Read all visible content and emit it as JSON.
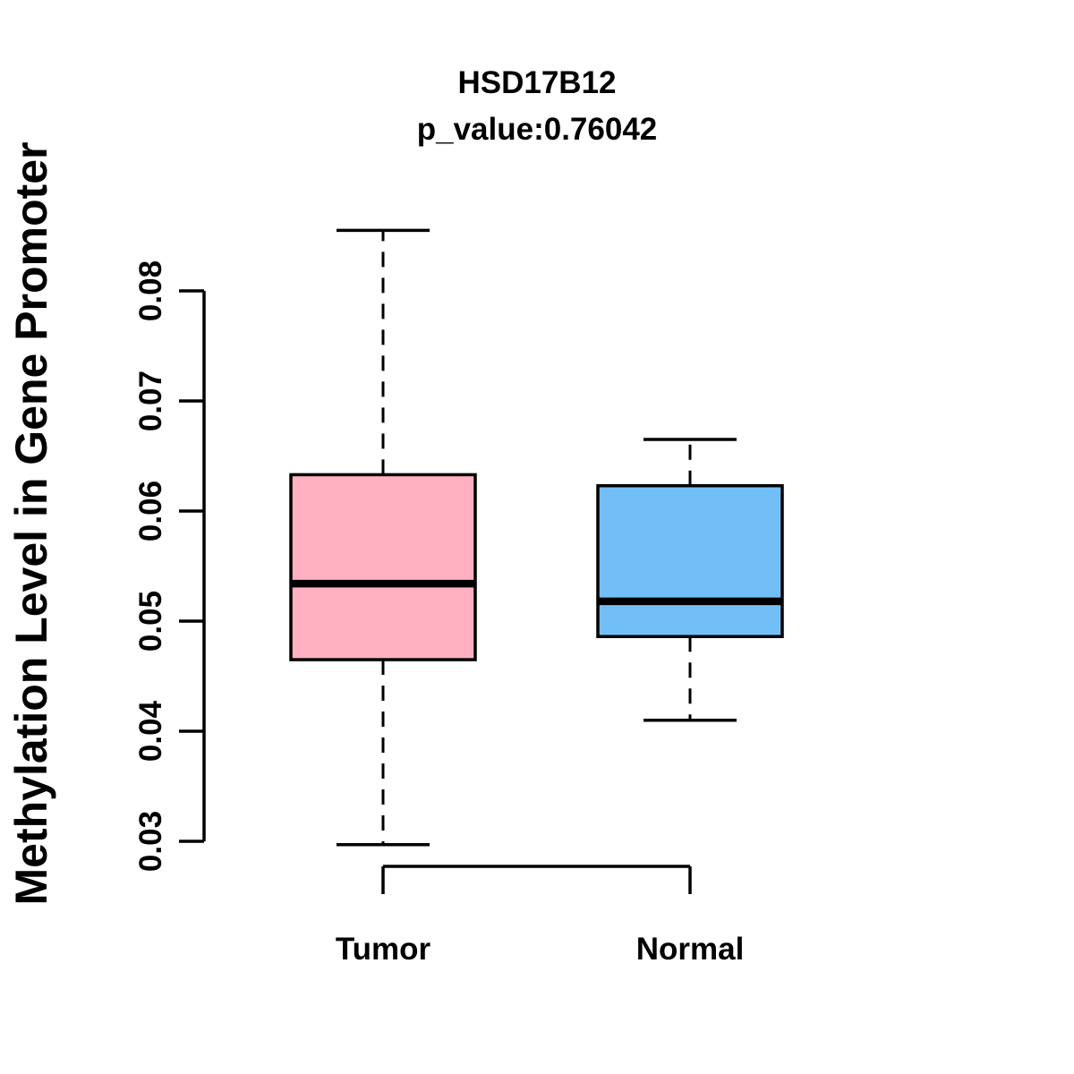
{
  "figure": {
    "title": "HSD17B12",
    "subtitle": "p_value:0.76042"
  },
  "chart_data": {
    "type": "boxplot",
    "title": "HSD17B12",
    "subtitle": "p_value:0.76042",
    "xlabel": "",
    "ylabel": "Methylation Level in Gene Promoter",
    "ylim": [
      0.03,
      0.08
    ],
    "yticks": [
      0.03,
      0.04,
      0.05,
      0.06,
      0.07,
      0.08
    ],
    "ytick_labels": [
      "0.03",
      "0.04",
      "0.05",
      "0.06",
      "0.07",
      "0.08"
    ],
    "grid": false,
    "legend": "none",
    "categories": [
      "Tumor",
      "Normal"
    ],
    "series": [
      {
        "name": "Tumor",
        "fill_color": "#FFB1C1",
        "whisker_low": 0.0297,
        "q1": 0.0465,
        "median": 0.0534,
        "q3": 0.0633,
        "whisker_high": 0.0855,
        "outliers": []
      },
      {
        "name": "Normal",
        "fill_color": "#72BFF7",
        "whisker_low": 0.041,
        "q1": 0.0486,
        "median": 0.0518,
        "q3": 0.0623,
        "whisker_high": 0.0665,
        "outliers": []
      }
    ],
    "line_color": "#000000",
    "background_color": "#FFFFFF",
    "whisker_style": "dashed"
  }
}
